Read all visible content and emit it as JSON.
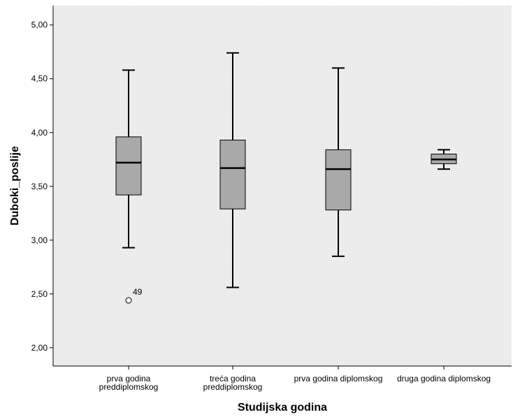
{
  "chart_data": {
    "type": "boxplot",
    "xlabel": "Studijska godina",
    "ylabel": "Duboki_poslije",
    "ylim": [
      1.83,
      5.18
    ],
    "yticks": [
      2.0,
      2.5,
      3.0,
      3.5,
      4.0,
      4.5,
      5.0
    ],
    "ytick_labels": [
      "2,00",
      "2,50",
      "3,00",
      "3,50",
      "4,00",
      "4,50",
      "5,00"
    ],
    "grid": false,
    "colors": {
      "plot_background": "#ededed",
      "box_fill": "#a9a9a9",
      "line": "#000000"
    },
    "categories": [
      {
        "label_lines": [
          "prva godina",
          "preddiplomskog"
        ],
        "min": 2.93,
        "q1": 3.42,
        "median": 3.72,
        "q3": 3.96,
        "max": 4.58,
        "outliers": [
          {
            "value": 2.44,
            "label": "49"
          }
        ]
      },
      {
        "label_lines": [
          "treća godina",
          "preddiplomskog"
        ],
        "min": 2.56,
        "q1": 3.29,
        "median": 3.67,
        "q3": 3.93,
        "max": 4.74,
        "outliers": []
      },
      {
        "label_lines": [
          "prva godina diplomskog"
        ],
        "min": 2.85,
        "q1": 3.28,
        "median": 3.66,
        "q3": 3.84,
        "max": 4.6,
        "outliers": []
      },
      {
        "label_lines": [
          "druga godina diplomskog"
        ],
        "min": 3.66,
        "q1": 3.71,
        "median": 3.75,
        "q3": 3.8,
        "max": 3.84,
        "outliers": []
      }
    ]
  }
}
